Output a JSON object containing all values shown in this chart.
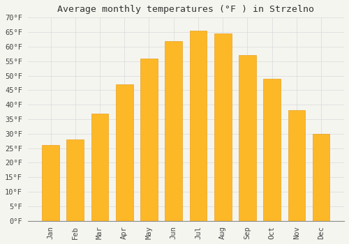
{
  "title": "Average monthly temperatures (°F ) in Strzelno",
  "months": [
    "Jan",
    "Feb",
    "Mar",
    "Apr",
    "May",
    "Jun",
    "Jul",
    "Aug",
    "Sep",
    "Oct",
    "Nov",
    "Dec"
  ],
  "values": [
    26,
    28,
    37,
    47,
    56,
    62,
    65.5,
    64.5,
    57,
    49,
    38,
    30
  ],
  "bar_color": "#FDB827",
  "bar_edge_color": "#E8A020",
  "background_color": "#F5F5F0",
  "grid_color": "#DDDDDD",
  "ylim": [
    0,
    70
  ],
  "yticks": [
    0,
    5,
    10,
    15,
    20,
    25,
    30,
    35,
    40,
    45,
    50,
    55,
    60,
    65,
    70
  ],
  "title_fontsize": 9.5,
  "tick_fontsize": 7.5,
  "title_font": "monospace",
  "tick_font": "monospace"
}
